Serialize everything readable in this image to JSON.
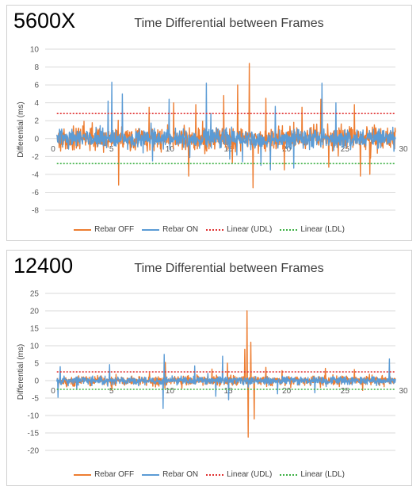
{
  "chart_data": [
    {
      "type": "line",
      "panel_label": "5600X",
      "title": "Time Differential between Frames",
      "xlabel": "",
      "ylabel": "Differential (ms)",
      "xlim": [
        0,
        30
      ],
      "ylim": [
        -8,
        10
      ],
      "xticks": [
        0,
        5,
        10,
        15,
        20,
        25,
        30
      ],
      "yticks": [
        -8,
        -6,
        -4,
        -2,
        0,
        2,
        4,
        6,
        8,
        10
      ],
      "grid": true,
      "legend": "bottom",
      "series": [
        {
          "name": "Rebar OFF",
          "color": "#ED7D31",
          "style": "solid",
          "amp": 1.1,
          "spikes": [
            [
              6.3,
              -5.2
            ],
            [
              8.9,
              3.5
            ],
            [
              11.0,
              4.0
            ],
            [
              12.3,
              -4.2
            ],
            [
              12.9,
              3.8
            ],
            [
              15.3,
              4.8
            ],
            [
              16.5,
              6.0
            ],
            [
              17.5,
              8.4
            ],
            [
              17.8,
              -5.5
            ],
            [
              18.9,
              4.5
            ],
            [
              22.0,
              3.5
            ],
            [
              23.6,
              4.4
            ],
            [
              24.3,
              -3.2
            ],
            [
              26.5,
              3.8
            ],
            [
              27.0,
              -4.2
            ],
            [
              27.8,
              -4.0
            ],
            [
              20.5,
              -3.5
            ]
          ]
        },
        {
          "name": "Rebar ON",
          "color": "#5B9BD5",
          "style": "solid",
          "amp": 0.9,
          "spikes": [
            [
              5.4,
              4.2
            ],
            [
              5.7,
              6.3
            ],
            [
              6.6,
              5.0
            ],
            [
              10.6,
              4.4
            ],
            [
              9.2,
              -2.5
            ],
            [
              13.8,
              6.2
            ],
            [
              14.2,
              2.8
            ],
            [
              15.8,
              -2.3
            ],
            [
              18.5,
              -3.0
            ],
            [
              19.3,
              -3.5
            ],
            [
              19.7,
              3.6
            ],
            [
              21.3,
              -3.3
            ],
            [
              23.7,
              6.2
            ],
            [
              24.9,
              4.0
            ],
            [
              16.9,
              -2.6
            ],
            [
              12.4,
              -2.1
            ]
          ]
        },
        {
          "name": "Linear (UDL)",
          "color": "#E03030",
          "style": "dotted",
          "constant": 2.8
        },
        {
          "name": "Linear (LDL)",
          "color": "#3CB043",
          "style": "dotted",
          "constant": -2.8
        }
      ]
    },
    {
      "type": "line",
      "panel_label": "12400",
      "title": "Time Differential between Frames",
      "xlabel": "",
      "ylabel": "Differential (ms)",
      "xlim": [
        0,
        30
      ],
      "ylim": [
        -20,
        25
      ],
      "xticks": [
        0,
        5,
        10,
        15,
        20,
        25,
        30
      ],
      "yticks": [
        -20,
        -15,
        -10,
        -5,
        0,
        5,
        10,
        15,
        20,
        25
      ],
      "grid": true,
      "legend": "bottom",
      "series": [
        {
          "name": "Rebar OFF",
          "color": "#ED7D31",
          "style": "solid",
          "amp": 1.2,
          "spikes": [
            [
              17.3,
              20.0
            ],
            [
              17.4,
              -16.2
            ],
            [
              17.6,
              11.0
            ],
            [
              17.9,
              -11.0
            ],
            [
              17.1,
              9.0
            ],
            [
              15.6,
              5.0
            ],
            [
              10.3,
              5.2
            ],
            [
              14.3,
              3.3
            ],
            [
              18.9,
              3.8
            ],
            [
              24.0,
              3.5
            ],
            [
              26.5,
              3.2
            ],
            [
              27.2,
              -2.8
            ]
          ]
        },
        {
          "name": "Rebar ON",
          "color": "#5B9BD5",
          "style": "solid",
          "amp": 1.0,
          "spikes": [
            [
              10.2,
              7.5
            ],
            [
              10.1,
              -8.0
            ],
            [
              15.2,
              7.0
            ],
            [
              15.7,
              -5.5
            ],
            [
              29.5,
              6.2
            ],
            [
              1.1,
              -4.8
            ],
            [
              1.3,
              4.0
            ],
            [
              5.5,
              4.6
            ],
            [
              12.8,
              4.2
            ],
            [
              14.6,
              -4.5
            ],
            [
              23.1,
              -3.5
            ],
            [
              19.9,
              -3.8
            ]
          ]
        },
        {
          "name": "Linear (UDL)",
          "color": "#E03030",
          "style": "dotted",
          "constant": 2.5
        },
        {
          "name": "Linear (LDL)",
          "color": "#3CB043",
          "style": "dotted",
          "constant": -2.5
        }
      ]
    }
  ]
}
